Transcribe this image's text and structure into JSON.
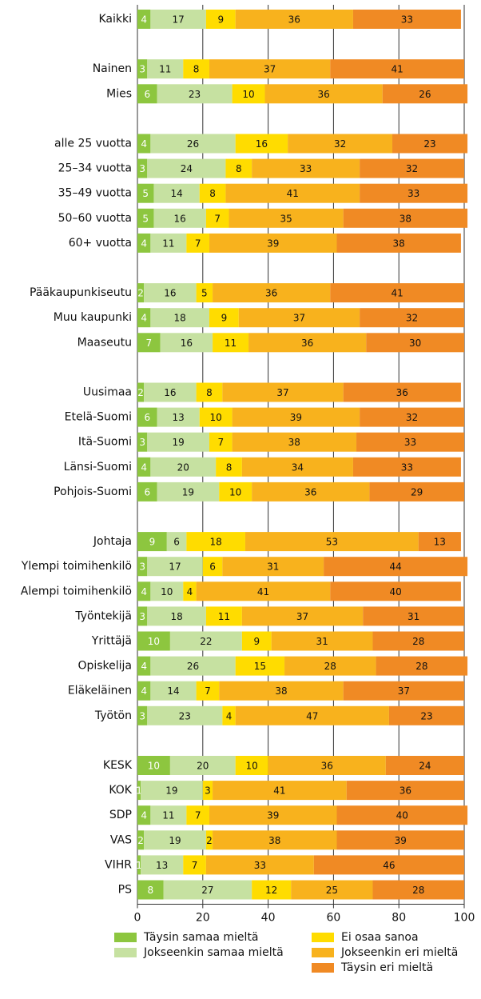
{
  "chart_data": {
    "type": "stacked-bar-horizontal",
    "categories": [
      "Kaikki",
      null,
      "Nainen",
      "Mies",
      null,
      "alle 25 vuotta",
      "25–34 vuotta",
      "35–49 vuotta",
      "50–60 vuotta",
      "60+ vuotta",
      null,
      "Pääkaupunkiseutu",
      "Muu kaupunki",
      "Maaseutu",
      null,
      "Uusimaa",
      "Etelä-Suomi",
      "Itä-Suomi",
      "Länsi-Suomi",
      "Pohjois-Suomi",
      null,
      "Johtaja",
      "Ylempi toimihenkilö",
      "Alempi toimihenkilö",
      "Työntekijä",
      "Yrittäjä",
      "Opiskelija",
      "Eläkeläinen",
      "Työtön",
      null,
      "KESK",
      "KOK",
      "SDP",
      "VAS",
      "VIHR",
      "PS"
    ],
    "series": [
      {
        "name": "Täysin samaa mieltä",
        "color": "#8dc63f",
        "values": [
          4,
          null,
          3,
          6,
          null,
          4,
          3,
          5,
          5,
          4,
          null,
          2,
          4,
          7,
          null,
          2,
          6,
          3,
          4,
          6,
          null,
          9,
          3,
          4,
          3,
          10,
          4,
          4,
          3,
          null,
          10,
          1,
          4,
          2,
          1,
          8
        ]
      },
      {
        "name": "Jokseenkin samaa mieltä",
        "color": "#c6e1a1",
        "values": [
          17,
          null,
          11,
          23,
          null,
          26,
          24,
          14,
          16,
          11,
          null,
          16,
          18,
          16,
          null,
          16,
          13,
          19,
          20,
          19,
          null,
          6,
          17,
          10,
          18,
          22,
          26,
          14,
          23,
          null,
          20,
          19,
          11,
          19,
          13,
          27
        ]
      },
      {
        "name": "Ei osaa sanoa",
        "color": "#ffdc00",
        "values": [
          9,
          null,
          8,
          10,
          null,
          16,
          8,
          8,
          7,
          7,
          null,
          5,
          9,
          11,
          null,
          8,
          10,
          7,
          8,
          10,
          null,
          18,
          6,
          4,
          11,
          9,
          15,
          7,
          4,
          null,
          10,
          3,
          7,
          2,
          7,
          12
        ]
      },
      {
        "name": "Jokseenkin eri mieltä",
        "color": "#f8b21d",
        "values": [
          36,
          null,
          37,
          36,
          null,
          32,
          33,
          41,
          35,
          39,
          null,
          36,
          37,
          36,
          null,
          37,
          39,
          38,
          34,
          36,
          null,
          53,
          31,
          41,
          37,
          31,
          28,
          38,
          47,
          null,
          36,
          41,
          39,
          38,
          33,
          25
        ]
      },
      {
        "name": "Täysin eri mieltä",
        "color": "#f08a24",
        "values": [
          33,
          null,
          41,
          26,
          null,
          23,
          32,
          33,
          38,
          38,
          null,
          41,
          32,
          30,
          null,
          36,
          32,
          33,
          33,
          29,
          null,
          13,
          44,
          40,
          31,
          28,
          28,
          37,
          23,
          null,
          24,
          36,
          40,
          39,
          46,
          28
        ]
      }
    ],
    "xlim": [
      0,
      100
    ],
    "xticks": [
      0,
      20,
      40,
      60,
      80,
      100
    ],
    "grid": true
  }
}
